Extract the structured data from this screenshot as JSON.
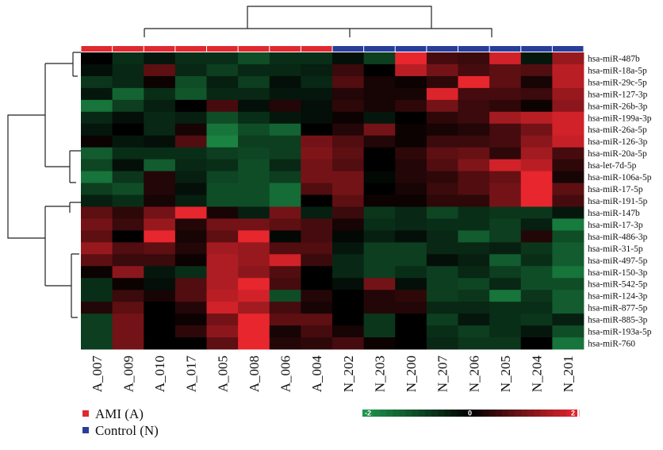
{
  "chart_data": {
    "type": "heatmap",
    "columns": [
      "A_007",
      "A_009",
      "A_010",
      "A_017",
      "A_005",
      "A_008",
      "A_006",
      "A_004",
      "N_202",
      "N_203",
      "N_200",
      "N_207",
      "N_206",
      "N_205",
      "N_204",
      "N_201"
    ],
    "column_groups": [
      "A",
      "A",
      "A",
      "A",
      "A",
      "A",
      "A",
      "A",
      "N",
      "N",
      "N",
      "N",
      "N",
      "N",
      "N",
      "N"
    ],
    "rows": [
      "hsa-miR-487b",
      "hsa-miR-18a-5p",
      "hsa-miR-29c-5p",
      "hsa-miR-127-3p",
      "hsa-miR-26b-3p",
      "hsa-miR-199a-3p",
      "hsa-miR-26a-5p",
      "hsa-miR-126-3p",
      "hsa-miR-20a-5p",
      "hsa-let-7d-5p",
      "hsa-miR-106a-5p",
      "hsa-miR-17-5p",
      "hsa-miR-191-5p",
      "hsa-miR-147b",
      "hsa-miR-17-3p",
      "hsa-miR-486-3p",
      "hsa-miR-31-5p",
      "hsa-miR-497-5p",
      "hsa-miR-150-3p",
      "hsa-miR-542-5p",
      "hsa-miR-124-3p",
      "hsa-miR-877-5p",
      "hsa-miR-885-3p",
      "hsa-miR-193a-5p",
      "hsa-miR-760"
    ],
    "values": [
      [
        0.0,
        -0.6,
        -0.3,
        -0.6,
        -0.6,
        -1.0,
        -0.6,
        -0.6,
        -0.2,
        -0.8,
        2.0,
        0.6,
        0.5,
        1.8,
        -0.3,
        1.3
      ],
      [
        -0.2,
        -0.5,
        0.8,
        -0.5,
        -0.8,
        -0.5,
        -0.5,
        -0.4,
        0.5,
        0.0,
        1.6,
        1.0,
        0.6,
        0.8,
        0.7,
        1.6
      ],
      [
        -0.7,
        -0.5,
        0.1,
        -1.0,
        -0.4,
        -0.8,
        -0.2,
        -0.5,
        0.7,
        0.2,
        0.1,
        0.4,
        2.0,
        0.8,
        0.2,
        1.6
      ],
      [
        -0.3,
        -1.3,
        -0.6,
        -1.1,
        -0.5,
        -0.5,
        -0.3,
        -0.3,
        0.3,
        0.2,
        0.2,
        1.9,
        0.6,
        0.6,
        0.5,
        1.3
      ],
      [
        -1.5,
        -0.8,
        -0.4,
        0.0,
        0.6,
        -0.2,
        0.3,
        -0.2,
        0.4,
        0.2,
        0.4,
        1.0,
        0.5,
        0.4,
        0.1,
        1.2
      ],
      [
        -0.5,
        -0.2,
        -0.5,
        -0.4,
        -1.0,
        -0.6,
        -0.3,
        -0.2,
        0.1,
        -0.3,
        0.0,
        0.4,
        0.5,
        1.4,
        1.6,
        1.8
      ],
      [
        -0.3,
        0.0,
        -0.5,
        0.2,
        -1.5,
        -1.0,
        -1.3,
        0.0,
        0.3,
        1.0,
        0.1,
        0.2,
        0.3,
        0.6,
        1.0,
        1.8
      ],
      [
        0.1,
        -0.3,
        -0.2,
        0.7,
        -1.7,
        -0.8,
        -0.8,
        1.0,
        0.7,
        0.3,
        0.1,
        0.5,
        0.5,
        0.6,
        1.2,
        1.7
      ],
      [
        -1.2,
        -0.6,
        -0.6,
        -0.6,
        -0.8,
        -0.9,
        -0.8,
        1.1,
        0.8,
        0.0,
        0.4,
        0.8,
        0.9,
        0.4,
        1.4,
        0.6
      ],
      [
        -0.9,
        -0.2,
        -1.2,
        -0.5,
        -0.6,
        -1.0,
        -0.5,
        1.0,
        0.7,
        0.0,
        0.3,
        0.7,
        1.1,
        1.8,
        1.6,
        0.4
      ],
      [
        -1.5,
        -0.7,
        0.3,
        -0.4,
        -0.9,
        -1.0,
        -0.8,
        1.0,
        1.0,
        -0.1,
        0.3,
        0.4,
        0.7,
        0.9,
        2.0,
        0.2
      ],
      [
        -0.8,
        -1.0,
        0.3,
        -0.2,
        -1.0,
        -1.0,
        -1.4,
        0.7,
        1.0,
        0.0,
        0.2,
        0.5,
        0.7,
        1.0,
        2.0,
        0.8
      ],
      [
        -0.4,
        -0.6,
        0.2,
        -0.4,
        -1.0,
        -1.0,
        -1.4,
        0.0,
        0.8,
        0.1,
        0.1,
        0.4,
        0.4,
        1.0,
        2.0,
        0.6
      ],
      [
        0.8,
        0.4,
        1.0,
        2.0,
        0.2,
        -0.4,
        1.0,
        -0.4,
        0.5,
        -0.7,
        -0.5,
        -0.9,
        -0.6,
        -0.7,
        -0.7,
        -0.3
      ],
      [
        1.0,
        0.5,
        1.3,
        0.3,
        1.0,
        1.0,
        0.8,
        0.6,
        0.2,
        -0.6,
        -0.5,
        -0.6,
        -0.6,
        -0.8,
        -0.4,
        -1.6
      ],
      [
        0.8,
        0.0,
        2.0,
        0.2,
        0.8,
        2.0,
        -0.1,
        0.6,
        -0.1,
        -0.4,
        -0.2,
        -0.5,
        -1.2,
        -0.8,
        0.3,
        -1.0
      ],
      [
        1.3,
        0.7,
        0.8,
        0.3,
        1.4,
        1.3,
        0.7,
        0.7,
        -0.3,
        -0.8,
        -0.8,
        -0.5,
        -0.5,
        -0.4,
        -0.7,
        -1.2
      ],
      [
        0.8,
        0.5,
        0.5,
        0.1,
        1.5,
        1.3,
        1.8,
        0.5,
        -0.5,
        -0.8,
        -0.8,
        -0.2,
        -0.4,
        -1.2,
        -0.6,
        -1.2
      ],
      [
        0.1,
        1.2,
        -0.3,
        -0.6,
        1.5,
        1.2,
        0.7,
        0.0,
        -0.5,
        -0.8,
        -0.6,
        -0.8,
        -0.5,
        -0.8,
        -1.0,
        -1.5
      ],
      [
        -0.6,
        0.1,
        -0.2,
        0.7,
        1.5,
        2.0,
        0.6,
        0.0,
        -0.2,
        1.0,
        -0.2,
        -0.8,
        -0.9,
        -0.5,
        -1.0,
        -1.0
      ],
      [
        -0.6,
        0.5,
        0.2,
        0.7,
        1.6,
        1.8,
        -1.0,
        0.3,
        0.0,
        0.3,
        0.4,
        -0.8,
        -0.7,
        -1.5,
        -0.7,
        -1.2
      ],
      [
        0.3,
        0.8,
        0.0,
        0.3,
        1.8,
        1.4,
        0.6,
        0.2,
        0.0,
        0.3,
        0.3,
        -0.5,
        -0.5,
        -0.6,
        -0.6,
        -1.2
      ],
      [
        -0.8,
        1.0,
        0.0,
        0.1,
        1.0,
        2.0,
        0.8,
        0.8,
        0.0,
        -0.7,
        0.0,
        -0.8,
        -0.3,
        -0.6,
        -0.7,
        -0.4
      ],
      [
        -0.8,
        1.0,
        0.0,
        0.4,
        1.2,
        2.0,
        0.2,
        0.6,
        0.2,
        -0.7,
        0.0,
        -0.6,
        -0.8,
        -0.6,
        -0.3,
        -1.0
      ],
      [
        -0.8,
        1.0,
        0.0,
        0.0,
        0.8,
        2.0,
        0.3,
        0.4,
        0.6,
        0.1,
        0.0,
        -0.5,
        -0.7,
        -0.7,
        0.0,
        -1.5
      ]
    ],
    "scale": {
      "min": -2,
      "max": 2,
      "min_label": "-2",
      "mid_label": "0",
      "max_label": "2",
      "low_color": "#1e9a4e",
      "mid_color": "#000000",
      "high_color": "#e8262e"
    },
    "legend": [
      {
        "label": "AMI (A)",
        "color": "#e0282f"
      },
      {
        "label": "Control (N)",
        "color": "#283d9a"
      }
    ]
  }
}
